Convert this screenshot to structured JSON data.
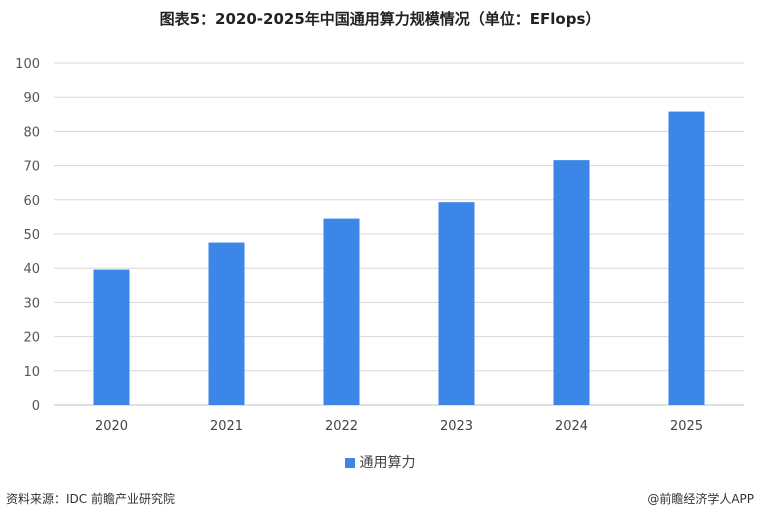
{
  "footer": {
    "source": "资料来源：IDC 前瞻产业研究院",
    "brand": "@前瞻经济学人APP"
  },
  "chart_data": {
    "type": "bar",
    "title": "图表5：2020-2025年中国通用算力规模情况（单位：EFlops）",
    "categories": [
      "2020",
      "2021",
      "2022",
      "2023",
      "2024",
      "2025"
    ],
    "series": [
      {
        "name": "通用算力",
        "values": [
          39.6,
          47.5,
          54.5,
          59.3,
          71.6,
          85.8
        ],
        "color": "#3b86e6"
      }
    ],
    "yticks": [
      "0",
      "10",
      "20",
      "30",
      "40",
      "50",
      "60",
      "70",
      "80",
      "90",
      "100"
    ],
    "ylim": [
      0,
      100
    ],
    "grid": true,
    "legend_position": "bottom"
  }
}
